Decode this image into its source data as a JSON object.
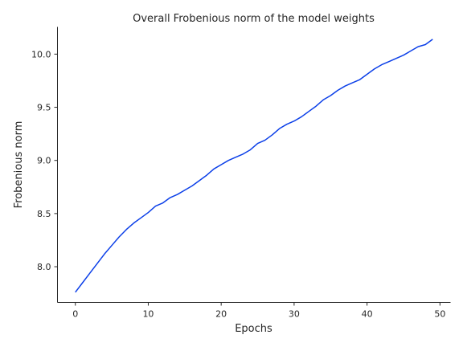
{
  "chart_data": {
    "type": "line",
    "title": "Overall Frobenious norm of the model weights",
    "xlabel": "Epochs",
    "ylabel": "Frobenious norm",
    "xlim": [
      -2.45,
      51.45
    ],
    "ylim": [
      7.664,
      10.256
    ],
    "xticks": [
      0,
      10,
      20,
      30,
      40,
      50
    ],
    "yticks": [
      8.0,
      8.5,
      9.0,
      9.5,
      10.0
    ],
    "grid": false,
    "legend": "none",
    "series": [
      {
        "color": "#0b3fe8",
        "x": [
          0,
          1,
          2,
          3,
          4,
          5,
          6,
          7,
          8,
          9,
          10,
          11,
          12,
          13,
          14,
          15,
          16,
          17,
          18,
          19,
          20,
          21,
          22,
          23,
          24,
          25,
          26,
          27,
          28,
          29,
          30,
          31,
          32,
          33,
          34,
          35,
          36,
          37,
          38,
          39,
          40,
          41,
          42,
          43,
          44,
          45,
          46,
          47,
          48,
          49
        ],
        "y": [
          7.76,
          7.85,
          7.94,
          8.03,
          8.12,
          8.2,
          8.28,
          8.35,
          8.41,
          8.46,
          8.51,
          8.57,
          8.6,
          8.65,
          8.68,
          8.72,
          8.76,
          8.81,
          8.86,
          8.92,
          8.96,
          9.0,
          9.03,
          9.06,
          9.1,
          9.16,
          9.19,
          9.24,
          9.3,
          9.34,
          9.37,
          9.41,
          9.46,
          9.51,
          9.57,
          9.61,
          9.66,
          9.7,
          9.73,
          9.76,
          9.81,
          9.86,
          9.9,
          9.93,
          9.96,
          9.99,
          10.03,
          10.07,
          10.09,
          10.14
        ]
      }
    ]
  }
}
